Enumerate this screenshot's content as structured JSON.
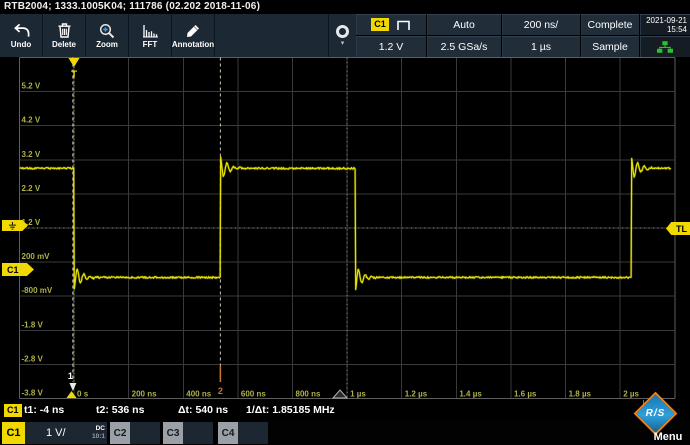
{
  "window": {
    "title": "RTB2004; 1333.1005K04; 111786 (02.202 2018-11-06)"
  },
  "toolbar": {
    "buttons": [
      {
        "label": "Undo",
        "icon": "undo-icon"
      },
      {
        "label": "Delete",
        "icon": "trash-icon"
      },
      {
        "label": "Zoom",
        "icon": "zoom-magnifier-icon"
      },
      {
        "label": "FFT",
        "icon": "fft-spectrum-icon"
      },
      {
        "label": "Annotation",
        "icon": "annotation-pencil-icon"
      }
    ]
  },
  "header": {
    "trigger_source_badge": "C1",
    "trigger_mode": "Auto",
    "trigger_level": "1.2 V",
    "sample_rate": "2.5 GSa/s",
    "timebase_scale": "200 ns/",
    "acquisition_time": "1 µs",
    "acquisition_status": "Complete",
    "acquisition_mode": "Sample",
    "date": "2021-09-21",
    "time": "15:54"
  },
  "graticule": {
    "voltage_labels": [
      "5.2 V",
      "4.2 V",
      "3.2 V",
      "2.2 V",
      "1.2 V",
      "200 mV",
      "-800 mV",
      "-1.8 V",
      "-2.8 V",
      "-3.8 V"
    ],
    "time_labels": [
      "0 s",
      "200 ns",
      "400 ns",
      "600 ns",
      "800 ns",
      "1 µs",
      "1.2 µs",
      "1.4 µs",
      "1.6 µs",
      "1.8 µs",
      "2 µs"
    ],
    "trigger_marker": "T",
    "trigger_level_tag": "TL",
    "channel_tag": "C1",
    "cursor1_label": "1",
    "cursor2_label": "2"
  },
  "chart_data": {
    "type": "line",
    "series_name": "C1 trace",
    "x_unit": "ns",
    "y_unit": "V",
    "time_per_div_ns": 200,
    "volts_per_div": 1,
    "x_range_ns": [
      -200,
      2200
    ],
    "y_range_v": [
      -3.8,
      6.2
    ],
    "high_level_v": 2.95,
    "low_level_v": -0.25,
    "overshoot_v": 0.38,
    "trigger_level_v": 1.2,
    "cursor1_t_ns": -4,
    "cursor2_t_ns": 536,
    "edges": [
      {
        "t_ns": 0,
        "dir": "fall"
      },
      {
        "t_ns": 536,
        "dir": "rise"
      },
      {
        "t_ns": 1030,
        "dir": "fall"
      },
      {
        "t_ns": 2040,
        "dir": "rise"
      }
    ]
  },
  "results": {
    "badge": "C1",
    "t1": "t1: -4 ns",
    "t2": "t2: 536 ns",
    "dt": "Δt: 540 ns",
    "freq": "1/Δt: 1.85185 MHz"
  },
  "channels": [
    {
      "id": "C1",
      "scale": "1 V/",
      "coupling": "DC",
      "probe": "10:1",
      "active": true
    },
    {
      "id": "C2",
      "active": false
    },
    {
      "id": "C3",
      "active": false
    },
    {
      "id": "C4",
      "active": false
    }
  ],
  "menu": {
    "label": "Menu",
    "logo_text": "R/S"
  },
  "colors": {
    "channel1": "#e6e200",
    "accent_yellow": "#f0d800",
    "cursor2_label": "#d2721e",
    "network_ok": "#2cc02c",
    "grid": "#3a3a3a",
    "label_olive": "#b0b048"
  }
}
